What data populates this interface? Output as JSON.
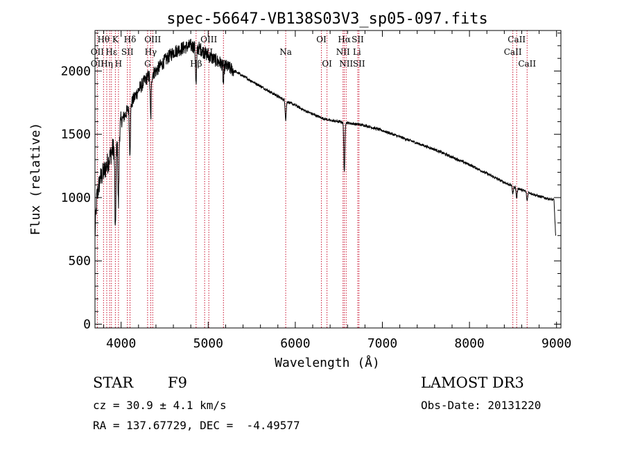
{
  "chart_data": {
    "type": "line",
    "title": "spec-56647-VB138S03V3_sp05-097.fits",
    "xlabel": "Wavelength (Å)",
    "ylabel": "Flux (relative)",
    "xlim": [
      3700,
      9050
    ],
    "ylim": [
      -30,
      2320
    ],
    "xticks": [
      4000,
      5000,
      6000,
      7000,
      8000,
      9000
    ],
    "xtick_labels": [
      "4000",
      "5000",
      "6000",
      "7000",
      "8000",
      "9000"
    ],
    "yticks": [
      0,
      500,
      1000,
      1500,
      2000
    ],
    "ytick_labels": [
      "0",
      "500",
      "1000",
      "1500",
      "2000"
    ],
    "grid": false,
    "series": [
      {
        "name": "spectrum",
        "continuum": [
          [
            3700,
            700
          ],
          [
            3720,
            1000
          ],
          [
            3760,
            1150
          ],
          [
            3800,
            1200
          ],
          [
            3850,
            1280
          ],
          [
            3900,
            1380
          ],
          [
            3950,
            1420
          ],
          [
            4000,
            1600
          ],
          [
            4100,
            1720
          ],
          [
            4200,
            1850
          ],
          [
            4300,
            1950
          ],
          [
            4400,
            2000
          ],
          [
            4500,
            2080
          ],
          [
            4600,
            2150
          ],
          [
            4700,
            2180
          ],
          [
            4800,
            2200
          ],
          [
            4900,
            2180
          ],
          [
            5000,
            2120
          ],
          [
            5100,
            2080
          ],
          [
            5200,
            2040
          ],
          [
            5300,
            2000
          ],
          [
            5400,
            1960
          ],
          [
            5500,
            1920
          ],
          [
            5600,
            1880
          ],
          [
            5700,
            1840
          ],
          [
            5800,
            1800
          ],
          [
            5900,
            1760
          ],
          [
            6000,
            1730
          ],
          [
            6100,
            1690
          ],
          [
            6200,
            1660
          ],
          [
            6300,
            1630
          ],
          [
            6400,
            1610
          ],
          [
            6500,
            1600
          ],
          [
            6600,
            1590
          ],
          [
            6700,
            1580
          ],
          [
            6800,
            1570
          ],
          [
            7000,
            1530
          ],
          [
            7200,
            1480
          ],
          [
            7400,
            1430
          ],
          [
            7600,
            1380
          ],
          [
            7800,
            1320
          ],
          [
            8000,
            1260
          ],
          [
            8200,
            1190
          ],
          [
            8400,
            1120
          ],
          [
            8600,
            1060
          ],
          [
            8800,
            1010
          ],
          [
            8970,
            980
          ],
          [
            8990,
            700
          ]
        ],
        "absorption_lines": [
          [
            3934,
            700
          ],
          [
            3969,
            550
          ],
          [
            4101,
            350
          ],
          [
            4340,
            350
          ],
          [
            4861,
            300
          ],
          [
            5175,
            150
          ],
          [
            5890,
            150
          ],
          [
            6563,
            400
          ],
          [
            8498,
            60
          ],
          [
            8542,
            80
          ],
          [
            8662,
            70
          ]
        ]
      }
    ],
    "line_markers": {
      "color": "#c8102e",
      "wavelengths": [
        3727,
        3798,
        3835,
        3869,
        3889,
        3934,
        3970,
        4072,
        4102,
        4304,
        4340,
        4363,
        4861,
        4959,
        5007,
        5175,
        5890,
        6300,
        6364,
        6548,
        6563,
        6584,
        6717,
        6731,
        8498,
        8542,
        8662
      ],
      "labels": [
        {
          "text": "Hθ",
          "wavelength": 3798,
          "row": 0
        },
        {
          "text": "OII",
          "wavelength": 3727,
          "row": 1
        },
        {
          "text": "OII",
          "wavelength": 3727,
          "row": 2
        },
        {
          "text": "Hη",
          "wavelength": 3835,
          "row": 2
        },
        {
          "text": "Hε",
          "wavelength": 3889,
          "row": 1
        },
        {
          "text": "K",
          "wavelength": 3934,
          "row": 0
        },
        {
          "text": "H",
          "wavelength": 3970,
          "row": 2
        },
        {
          "text": "SII",
          "wavelength": 4072,
          "row": 1
        },
        {
          "text": "Hδ",
          "wavelength": 4102,
          "row": 0
        },
        {
          "text": "OIII",
          "wavelength": 4363,
          "row": 0
        },
        {
          "text": "Hγ",
          "wavelength": 4340,
          "row": 1
        },
        {
          "text": "G",
          "wavelength": 4304,
          "row": 2
        },
        {
          "text": "Hβ",
          "wavelength": 4861,
          "row": 2
        },
        {
          "text": "OIII",
          "wavelength": 5007,
          "row": 0
        },
        {
          "text": "OIII",
          "wavelength": 4959,
          "row": 1
        },
        {
          "text": "Mg",
          "wavelength": 5175,
          "row": 2
        },
        {
          "text": "Na",
          "wavelength": 5890,
          "row": 1
        },
        {
          "text": "OI",
          "wavelength": 6300,
          "row": 0
        },
        {
          "text": "OI",
          "wavelength": 6364,
          "row": 2
        },
        {
          "text": "Hα",
          "wavelength": 6563,
          "row": 0
        },
        {
          "text": "NII",
          "wavelength": 6548,
          "row": 1
        },
        {
          "text": "NII",
          "wavelength": 6584,
          "row": 2
        },
        {
          "text": "SII",
          "wavelength": 6717,
          "row": 0
        },
        {
          "text": "Li",
          "wavelength": 6708,
          "row": 1
        },
        {
          "text": "SII",
          "wavelength": 6731,
          "row": 2
        },
        {
          "text": "CaII",
          "wavelength": 8542,
          "row": 0
        },
        {
          "text": "CaII",
          "wavelength": 8498,
          "row": 1
        },
        {
          "text": "CaII",
          "wavelength": 8662,
          "row": 2
        }
      ]
    }
  },
  "info": {
    "object_class": "STAR",
    "subclass": "F9",
    "survey": "LAMOST DR3",
    "redshift": "cz = 30.9 ± 4.1 km/s",
    "obs_date": "Obs-Date: 20131220",
    "coords": "RA = 137.67729, DEC =  -4.49577"
  }
}
